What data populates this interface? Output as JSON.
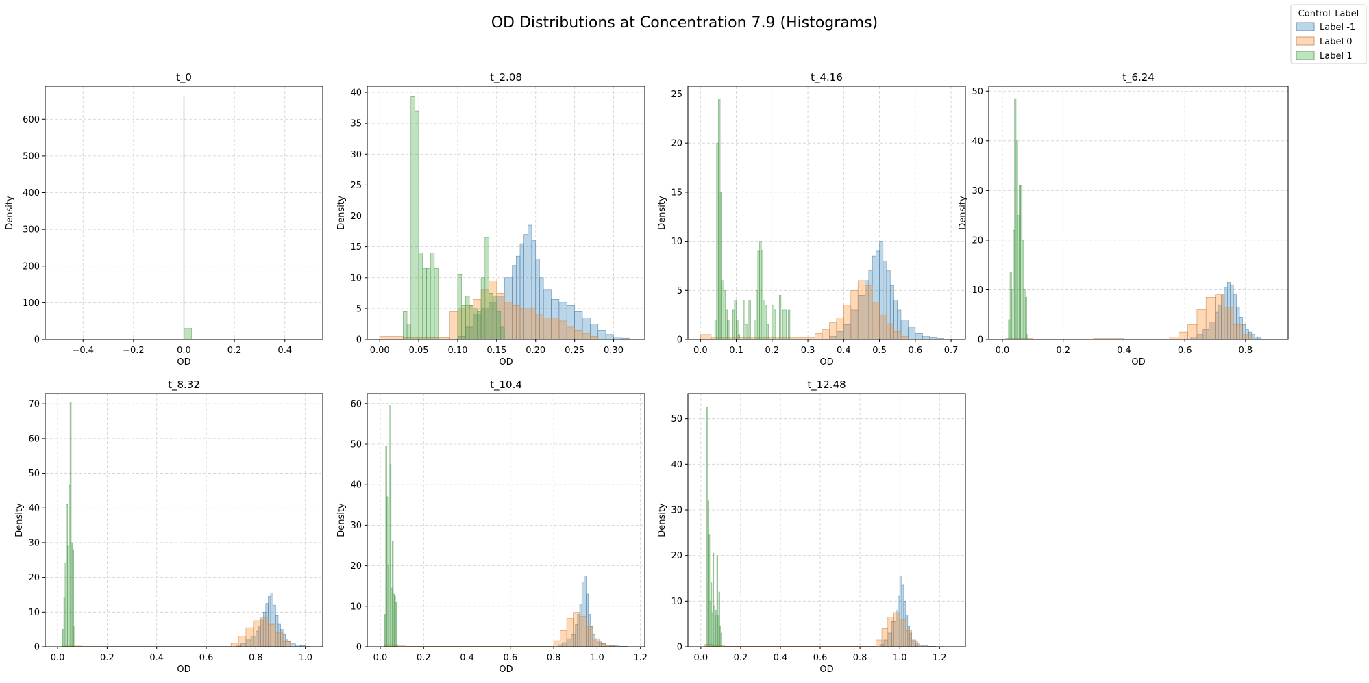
{
  "figure": {
    "title": "OD Distributions at Concentration 7.9 (Histograms)"
  },
  "legend": {
    "title": "Control_Label",
    "placement": "top-right",
    "entries": [
      {
        "label": "Label -1",
        "fill": "#1f77b4",
        "stroke": "#4f7ea6"
      },
      {
        "label": "Label 0",
        "fill": "#ff7f0e",
        "stroke": "#c08a5a"
      },
      {
        "label": "Label 1",
        "fill": "#2ca02c",
        "stroke": "#5a9a5a"
      }
    ]
  },
  "style": {
    "fill_opacity": 0.3,
    "grid_color": "#cfcfcf",
    "grid": true
  },
  "chart_data": [
    {
      "type": "histogram",
      "title": "t_0",
      "xlabel": "OD",
      "ylabel": "Density",
      "xlim": [
        -0.55,
        0.55
      ],
      "ylim": [
        0,
        690
      ],
      "xticks": [
        -0.4,
        -0.2,
        0.0,
        0.2,
        0.4
      ],
      "xtick_labels": [
        "−0.4",
        "−0.2",
        "0.0",
        "0.2",
        "0.4"
      ],
      "yticks": [
        0,
        100,
        200,
        300,
        400,
        500,
        600
      ],
      "ytick_labels": [
        "0",
        "100",
        "200",
        "300",
        "400",
        "500",
        "600"
      ],
      "series": [
        {
          "name": "Label -1",
          "edges": [
            -0.0008,
            0.0008
          ],
          "values": [
            660
          ]
        },
        {
          "name": "Label 0",
          "edges": [
            -0.0008,
            0.0008
          ],
          "values": [
            660
          ]
        },
        {
          "name": "Label 1",
          "edges": [
            0.0,
            0.03
          ],
          "values": [
            30
          ]
        }
      ]
    },
    {
      "type": "histogram",
      "title": "t_2.08",
      "xlabel": "OD",
      "ylabel": "Density",
      "xlim": [
        -0.016,
        0.34
      ],
      "ylim": [
        0,
        41
      ],
      "xticks": [
        0.0,
        0.05,
        0.1,
        0.15,
        0.2,
        0.25,
        0.3
      ],
      "xtick_labels": [
        "0.00",
        "0.05",
        "0.10",
        "0.15",
        "0.20",
        "0.25",
        "0.30"
      ],
      "yticks": [
        0,
        5,
        10,
        15,
        20,
        25,
        30,
        35,
        40
      ],
      "ytick_labels": [
        "0",
        "5",
        "10",
        "15",
        "20",
        "25",
        "30",
        "35",
        "40"
      ],
      "series": [
        {
          "name": "Label -1",
          "edges": [
            0.1,
            0.11,
            0.12,
            0.13,
            0.14,
            0.15,
            0.16,
            0.17,
            0.175,
            0.18,
            0.185,
            0.19,
            0.195,
            0.2,
            0.205,
            0.21,
            0.22,
            0.23,
            0.24,
            0.25,
            0.26,
            0.27,
            0.28,
            0.29,
            0.3,
            0.31,
            0.32
          ],
          "values": [
            0.5,
            2,
            4,
            5,
            6,
            7,
            10,
            12,
            13.5,
            15.5,
            17,
            18.5,
            16,
            13,
            10,
            8,
            6.5,
            6,
            5.5,
            4.5,
            3.5,
            2.5,
            1.5,
            0.8,
            0.4,
            0.2
          ]
        },
        {
          "name": "Label 0",
          "edges": [
            0.0,
            0.03,
            0.09,
            0.1,
            0.11,
            0.12,
            0.13,
            0.14,
            0.15,
            0.16,
            0.17,
            0.18,
            0.19,
            0.2,
            0.21,
            0.22,
            0.23,
            0.24,
            0.25,
            0.26,
            0.27,
            0.28
          ],
          "values": [
            0.5,
            0.3,
            4.5,
            5,
            5.5,
            6.5,
            8,
            9.5,
            7.5,
            6,
            5.5,
            5,
            5,
            4,
            3.5,
            3.5,
            3,
            2,
            1.5,
            1,
            0.5
          ]
        },
        {
          "name": "Label 1",
          "edges": [
            0.03,
            0.035,
            0.04,
            0.045,
            0.05,
            0.055,
            0.06,
            0.065,
            0.07,
            0.075,
            0.1,
            0.105,
            0.11,
            0.115,
            0.12,
            0.125,
            0.13,
            0.135,
            0.14,
            0.145,
            0.15,
            0.155,
            0.16
          ],
          "values": [
            4.5,
            2.5,
            39.3,
            37,
            14,
            11.5,
            11.5,
            14,
            11.5,
            0,
            10.5,
            5.5,
            7,
            5.5,
            5,
            4.5,
            10,
            16.5,
            7.5,
            7,
            4.5,
            2
          ]
        }
      ]
    },
    {
      "type": "histogram",
      "title": "t_4.16",
      "xlabel": "OD",
      "ylabel": "Density",
      "xlim": [
        -0.035,
        0.74
      ],
      "ylim": [
        0,
        25.8
      ],
      "xticks": [
        0.0,
        0.1,
        0.2,
        0.3,
        0.4,
        0.5,
        0.6,
        0.7
      ],
      "xtick_labels": [
        "0.0",
        "0.1",
        "0.2",
        "0.3",
        "0.4",
        "0.5",
        "0.6",
        "0.7"
      ],
      "yticks": [
        0,
        5,
        10,
        15,
        20,
        25
      ],
      "ytick_labels": [
        "0",
        "5",
        "10",
        "15",
        "20",
        "25"
      ],
      "series": [
        {
          "name": "Label -1",
          "edges": [
            0.36,
            0.38,
            0.4,
            0.42,
            0.44,
            0.46,
            0.47,
            0.48,
            0.49,
            0.5,
            0.51,
            0.52,
            0.53,
            0.54,
            0.55,
            0.56,
            0.58,
            0.6,
            0.62,
            0.64,
            0.66,
            0.68
          ],
          "values": [
            0.3,
            0.8,
            1.5,
            3,
            4.5,
            6,
            7,
            8.5,
            9,
            10,
            8,
            7,
            5.5,
            4,
            3,
            2,
            1.2,
            0.6,
            0.3,
            0.2,
            0.1
          ]
        },
        {
          "name": "Label 0",
          "edges": [
            0.0,
            0.03,
            0.32,
            0.34,
            0.36,
            0.38,
            0.4,
            0.42,
            0.44,
            0.46,
            0.48,
            0.5,
            0.52,
            0.54,
            0.56,
            0.58
          ],
          "values": [
            0.5,
            0.2,
            0.6,
            1,
            1.7,
            2.2,
            3.5,
            5,
            6,
            5.5,
            3.8,
            2.5,
            1.6,
            0.8,
            0.3
          ]
        },
        {
          "name": "Label 1",
          "edges": [
            0.04,
            0.045,
            0.05,
            0.055,
            0.06,
            0.065,
            0.07,
            0.075,
            0.08,
            0.09,
            0.095,
            0.1,
            0.105,
            0.11,
            0.12,
            0.125,
            0.13,
            0.135,
            0.14,
            0.15,
            0.155,
            0.16,
            0.165,
            0.17,
            0.175,
            0.18,
            0.185,
            0.19,
            0.2,
            0.205,
            0.21,
            0.22,
            0.225,
            0.23,
            0.24,
            0.245,
            0.25
          ],
          "values": [
            2,
            20,
            24.5,
            15,
            6,
            5,
            3,
            2,
            0,
            3,
            4,
            2,
            0.5,
            0,
            4,
            1.5,
            0,
            4,
            0,
            2,
            5,
            9,
            10,
            9,
            4,
            3.5,
            1.5,
            0,
            3.5,
            3,
            0,
            4.5,
            0,
            3,
            0,
            3
          ]
        }
      ]
    },
    {
      "type": "histogram",
      "title": "t_6.24",
      "xlabel": "OD",
      "ylabel": "Density",
      "xlim": [
        -0.045,
        0.94
      ],
      "ylim": [
        0,
        51
      ],
      "xticks": [
        0.0,
        0.2,
        0.4,
        0.6,
        0.8
      ],
      "xtick_labels": [
        "0.0",
        "0.2",
        "0.4",
        "0.6",
        "0.8"
      ],
      "yticks": [
        0,
        10,
        20,
        30,
        40,
        50
      ],
      "ytick_labels": [
        "0",
        "10",
        "20",
        "30",
        "40",
        "50"
      ],
      "series": [
        {
          "name": "Label -1",
          "edges": [
            0.62,
            0.64,
            0.66,
            0.68,
            0.7,
            0.71,
            0.72,
            0.73,
            0.74,
            0.75,
            0.76,
            0.77,
            0.78,
            0.79,
            0.8,
            0.81,
            0.82,
            0.83,
            0.84,
            0.85,
            0.86
          ],
          "values": [
            0.5,
            1,
            2,
            3.5,
            5.5,
            7,
            9,
            10.5,
            11.5,
            11,
            9,
            6.5,
            4.5,
            3,
            2,
            1.5,
            1,
            0.5,
            0.3,
            0.1
          ]
        },
        {
          "name": "Label 0",
          "edges": [
            0.01,
            0.1,
            0.3,
            0.4,
            0.55,
            0.58,
            0.61,
            0.64,
            0.67,
            0.7,
            0.73,
            0.76,
            0.79,
            0.82
          ],
          "values": [
            0.2,
            0.1,
            0.2,
            0.1,
            0.5,
            1.5,
            3,
            6,
            8.5,
            9,
            6.5,
            3,
            1,
            0.3
          ]
        },
        {
          "name": "Label 1",
          "edges": [
            0.02,
            0.025,
            0.03,
            0.035,
            0.04,
            0.045,
            0.05,
            0.055,
            0.06,
            0.065,
            0.07,
            0.075,
            0.08,
            0.085
          ],
          "values": [
            4,
            13.5,
            10,
            22,
            48.5,
            40,
            25,
            31,
            31,
            20,
            10,
            8.5,
            1
          ]
        }
      ]
    },
    {
      "type": "histogram",
      "title": "t_8.32",
      "xlabel": "OD",
      "ylabel": "Density",
      "xlim": [
        -0.05,
        1.07
      ],
      "ylim": [
        0,
        73
      ],
      "xticks": [
        0.0,
        0.2,
        0.4,
        0.6,
        0.8,
        1.0
      ],
      "xtick_labels": [
        "0.0",
        "0.2",
        "0.4",
        "0.6",
        "0.8",
        "1.0"
      ],
      "yticks": [
        0,
        10,
        20,
        30,
        40,
        50,
        60,
        70
      ],
      "ytick_labels": [
        "0",
        "10",
        "20",
        "30",
        "40",
        "50",
        "60",
        "70"
      ],
      "series": [
        {
          "name": "Label -1",
          "edges": [
            0.72,
            0.74,
            0.76,
            0.78,
            0.8,
            0.81,
            0.82,
            0.83,
            0.84,
            0.85,
            0.86,
            0.87,
            0.88,
            0.89,
            0.9,
            0.91,
            0.92,
            0.93,
            0.94,
            0.96,
            0.98,
            1.0,
            1.02
          ],
          "values": [
            0.5,
            1,
            2,
            3,
            4.5,
            6,
            8,
            10,
            12.5,
            14.5,
            15.5,
            12,
            9,
            6.5,
            5,
            3.5,
            2,
            1.5,
            1,
            0.5,
            0.3,
            0.1
          ]
        },
        {
          "name": "Label 0",
          "edges": [
            0.02,
            0.06,
            0.1,
            0.5,
            0.7,
            0.73,
            0.76,
            0.79,
            0.82,
            0.85,
            0.88,
            0.91,
            0.94
          ],
          "values": [
            0.5,
            0.2,
            0.1,
            0.1,
            1,
            3,
            5.5,
            7.5,
            8.5,
            6.5,
            4,
            1.5
          ]
        },
        {
          "name": "Label 1",
          "edges": [
            0.02,
            0.025,
            0.03,
            0.035,
            0.04,
            0.045,
            0.05,
            0.055,
            0.06,
            0.065,
            0.07
          ],
          "values": [
            5,
            14,
            24,
            41,
            29,
            46.5,
            70.5,
            30,
            28,
            6
          ]
        }
      ]
    },
    {
      "type": "histogram",
      "title": "t_10.4",
      "xlabel": "OD",
      "ylabel": "Density",
      "xlim": [
        -0.06,
        1.22
      ],
      "ylim": [
        0,
        62.5
      ],
      "xticks": [
        0.0,
        0.2,
        0.4,
        0.6,
        0.8,
        1.0,
        1.2
      ],
      "xtick_labels": [
        "0.0",
        "0.2",
        "0.4",
        "0.6",
        "0.8",
        "1.0",
        "1.2"
      ],
      "yticks": [
        0,
        10,
        20,
        30,
        40,
        50,
        60
      ],
      "ytick_labels": [
        "0",
        "10",
        "20",
        "30",
        "40",
        "50",
        "60"
      ],
      "series": [
        {
          "name": "Label -1",
          "edges": [
            0.82,
            0.84,
            0.86,
            0.88,
            0.9,
            0.91,
            0.92,
            0.93,
            0.94,
            0.95,
            0.96,
            0.97,
            0.98,
            0.99,
            1.0,
            1.02,
            1.04,
            1.06,
            1.08,
            1.1,
            1.14
          ],
          "values": [
            0.5,
            1,
            2,
            3,
            5.5,
            8,
            10.5,
            16,
            17.5,
            13,
            8,
            5,
            3,
            2,
            1.2,
            0.7,
            0.4,
            0.3,
            0.2,
            0.1
          ]
        },
        {
          "name": "Label 0",
          "edges": [
            0.02,
            0.08,
            0.12,
            0.6,
            0.8,
            0.83,
            0.86,
            0.89,
            0.92,
            0.95,
            0.98,
            1.01,
            1.04,
            1.08
          ],
          "values": [
            0.5,
            0.2,
            0.1,
            0.1,
            1.5,
            4,
            7,
            8.5,
            7.5,
            5,
            2,
            0.8,
            0.3
          ]
        },
        {
          "name": "Label 1",
          "edges": [
            0.02,
            0.025,
            0.03,
            0.035,
            0.04,
            0.045,
            0.05,
            0.055,
            0.06,
            0.065,
            0.07,
            0.075
          ],
          "values": [
            8,
            49.5,
            37,
            20,
            59.5,
            45,
            14.5,
            26,
            13,
            12.5,
            11
          ]
        }
      ]
    },
    {
      "type": "histogram",
      "title": "t_12.48",
      "xlabel": "OD",
      "ylabel": "Density",
      "xlim": [
        -0.065,
        1.33
      ],
      "ylim": [
        0,
        55.5
      ],
      "xticks": [
        0.0,
        0.2,
        0.4,
        0.6,
        0.8,
        1.0,
        1.2
      ],
      "xtick_labels": [
        "0.0",
        "0.2",
        "0.4",
        "0.6",
        "0.8",
        "1.0",
        "1.2"
      ],
      "yticks": [
        0,
        10,
        20,
        30,
        40,
        50
      ],
      "ytick_labels": [
        "0",
        "10",
        "20",
        "30",
        "40",
        "50"
      ],
      "series": [
        {
          "name": "Label -1",
          "edges": [
            0.9,
            0.92,
            0.94,
            0.96,
            0.98,
            0.99,
            1.0,
            1.01,
            1.02,
            1.03,
            1.04,
            1.05,
            1.06,
            1.08,
            1.1,
            1.12,
            1.14,
            1.18,
            1.22
          ],
          "values": [
            0.5,
            1.5,
            3,
            5.5,
            8,
            11,
            15.5,
            13.5,
            10,
            7,
            4.5,
            3,
            1.5,
            0.8,
            0.4,
            0.2,
            0.1,
            0.05
          ]
        },
        {
          "name": "Label 0",
          "edges": [
            0.02,
            0.06,
            0.12,
            0.7,
            0.88,
            0.91,
            0.94,
            0.97,
            1.0,
            1.03,
            1.06,
            1.09,
            1.12
          ],
          "values": [
            0.5,
            0.2,
            0.1,
            0.1,
            1.5,
            4,
            6.5,
            7.5,
            6,
            3.5,
            1.2,
            0.4
          ]
        },
        {
          "name": "Label 1",
          "edges": [
            0.03,
            0.035,
            0.04,
            0.045,
            0.05,
            0.055,
            0.06,
            0.065,
            0.07,
            0.075,
            0.08,
            0.085,
            0.09,
            0.095,
            0.1,
            0.105
          ],
          "values": [
            52.5,
            32,
            24.5,
            10,
            14,
            7.5,
            20.5,
            9,
            7,
            8,
            20,
            7,
            12,
            4.5,
            3
          ]
        }
      ]
    }
  ]
}
